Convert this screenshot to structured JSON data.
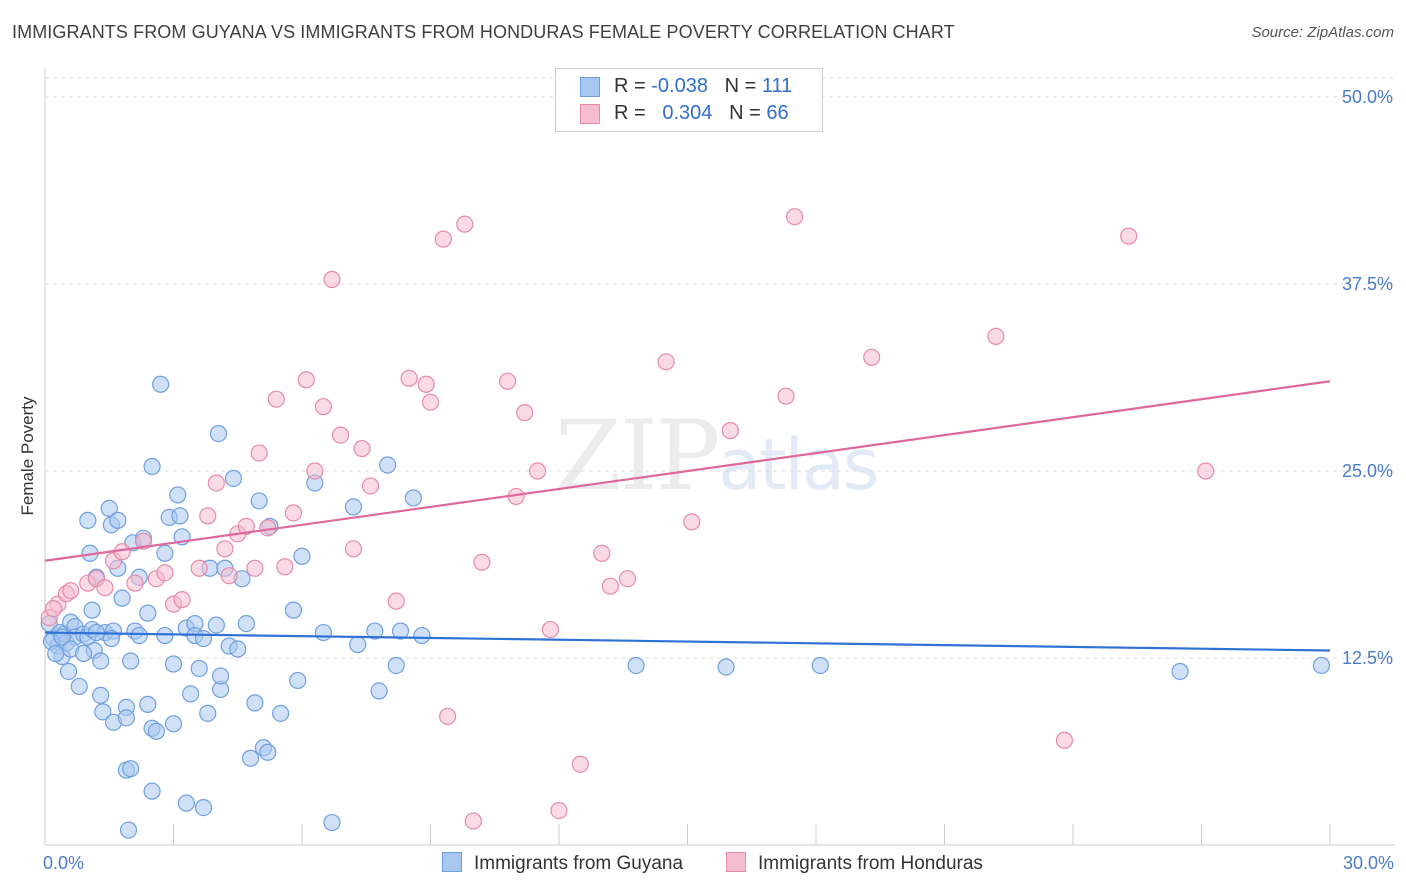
{
  "title": "IMMIGRANTS FROM GUYANA VS IMMIGRANTS FROM HONDURAS FEMALE POVERTY CORRELATION CHART",
  "source": "Source: ZipAtlas.com",
  "watermark": {
    "zip": "ZIP",
    "atlas": "atlas"
  },
  "legend": {
    "rows": [
      {
        "r_label": "R =",
        "r_value": "-0.038",
        "n_label": "N =",
        "n_value": "111",
        "color": "#a9c8f0",
        "border": "#6f9fe0"
      },
      {
        "r_label": "R =",
        "r_value": "0.304",
        "n_label": "N =",
        "n_value": "66",
        "color": "#f6bcd0",
        "border": "#e88aab"
      }
    ]
  },
  "bottom_legend": [
    "Immigrants from Guyana",
    "Immigrants from Honduras"
  ],
  "chart_data": {
    "type": "scatter",
    "title": "IMMIGRANTS FROM GUYANA VS IMMIGRANTS FROM HONDURAS FEMALE POVERTY CORRELATION CHART",
    "xlabel": "",
    "ylabel": "Female Poverty",
    "xlim": [
      0,
      30
    ],
    "ylim": [
      0,
      50
    ],
    "x_tick_labels": [
      "0.0%",
      "30.0%"
    ],
    "y_ticks": [
      12.5,
      25.0,
      37.5,
      50.0
    ],
    "y_tick_labels": [
      "12.5%",
      "25.0%",
      "37.5%",
      "50.0%"
    ],
    "grid": true,
    "series": [
      {
        "name": "Immigrants from Guyana",
        "color": "#6f9fe0",
        "fill": "#a9c8f0",
        "trend": {
          "x": [
            0,
            30
          ],
          "y": [
            14.2,
            13.0
          ]
        },
        "points": [
          [
            0.1,
            14.8
          ],
          [
            0.2,
            13.8
          ],
          [
            0.3,
            13.3
          ],
          [
            0.35,
            14.2
          ],
          [
            0.4,
            12.6
          ],
          [
            0.45,
            14.1
          ],
          [
            0.5,
            13.5
          ],
          [
            0.55,
            11.6
          ],
          [
            0.6,
            14.9
          ],
          [
            0.7,
            14.6
          ],
          [
            0.7,
            13.9
          ],
          [
            0.8,
            10.6
          ],
          [
            0.9,
            14.1
          ],
          [
            1.0,
            13.9
          ],
          [
            1.1,
            14.4
          ],
          [
            1.15,
            13.0
          ],
          [
            1.0,
            21.7
          ],
          [
            1.05,
            19.5
          ],
          [
            1.1,
            15.7
          ],
          [
            1.2,
            17.9
          ],
          [
            1.3,
            10.0
          ],
          [
            1.35,
            8.9
          ],
          [
            1.3,
            12.3
          ],
          [
            1.4,
            14.2
          ],
          [
            1.5,
            22.5
          ],
          [
            1.55,
            21.4
          ],
          [
            1.6,
            14.3
          ],
          [
            1.6,
            8.2
          ],
          [
            1.7,
            21.7
          ],
          [
            1.7,
            18.5
          ],
          [
            1.8,
            16.5
          ],
          [
            1.9,
            9.2
          ],
          [
            1.9,
            8.5
          ],
          [
            1.9,
            5.0
          ],
          [
            1.95,
            1.0
          ],
          [
            2.0,
            5.1
          ],
          [
            2.0,
            12.3
          ],
          [
            2.05,
            20.2
          ],
          [
            2.1,
            14.3
          ],
          [
            2.2,
            14.0
          ],
          [
            2.3,
            20.5
          ],
          [
            2.4,
            15.5
          ],
          [
            2.4,
            9.4
          ],
          [
            2.5,
            25.3
          ],
          [
            2.5,
            7.8
          ],
          [
            2.5,
            3.6
          ],
          [
            2.6,
            7.6
          ],
          [
            2.7,
            30.8
          ],
          [
            2.8,
            14.0
          ],
          [
            2.8,
            19.5
          ],
          [
            2.9,
            21.9
          ],
          [
            3.0,
            8.1
          ],
          [
            3.0,
            12.1
          ],
          [
            3.1,
            23.4
          ],
          [
            3.15,
            22.0
          ],
          [
            3.2,
            20.6
          ],
          [
            3.3,
            14.5
          ],
          [
            3.3,
            2.8
          ],
          [
            3.4,
            10.1
          ],
          [
            3.5,
            14.8
          ],
          [
            3.5,
            14.0
          ],
          [
            3.6,
            11.8
          ],
          [
            3.7,
            13.8
          ],
          [
            3.7,
            2.5
          ],
          [
            3.8,
            8.8
          ],
          [
            3.85,
            18.5
          ],
          [
            4.0,
            14.7
          ],
          [
            4.05,
            27.5
          ],
          [
            4.1,
            10.4
          ],
          [
            4.1,
            11.3
          ],
          [
            4.2,
            18.5
          ],
          [
            4.3,
            13.3
          ],
          [
            4.4,
            24.5
          ],
          [
            4.5,
            13.1
          ],
          [
            4.6,
            17.8
          ],
          [
            4.7,
            14.8
          ],
          [
            4.8,
            5.8
          ],
          [
            4.9,
            9.5
          ],
          [
            5.0,
            23.0
          ],
          [
            5.1,
            6.5
          ],
          [
            5.2,
            6.2
          ],
          [
            5.25,
            21.3
          ],
          [
            5.5,
            8.8
          ],
          [
            5.8,
            15.7
          ],
          [
            5.9,
            11.0
          ],
          [
            6.0,
            19.3
          ],
          [
            6.3,
            24.2
          ],
          [
            6.5,
            14.2
          ],
          [
            6.7,
            1.5
          ],
          [
            7.2,
            22.6
          ],
          [
            7.3,
            13.4
          ],
          [
            7.7,
            14.3
          ],
          [
            7.8,
            10.3
          ],
          [
            8.0,
            25.4
          ],
          [
            8.2,
            12.0
          ],
          [
            8.3,
            14.3
          ],
          [
            8.6,
            23.2
          ],
          [
            8.8,
            14.0
          ],
          [
            13.8,
            12.0
          ],
          [
            15.9,
            11.9
          ],
          [
            18.1,
            12.0
          ],
          [
            26.5,
            11.6
          ],
          [
            29.8,
            12.0
          ],
          [
            0.15,
            13.6
          ],
          [
            0.25,
            12.8
          ],
          [
            0.4,
            13.9
          ],
          [
            0.6,
            13.1
          ],
          [
            0.9,
            12.8
          ],
          [
            1.2,
            14.2
          ],
          [
            1.55,
            13.8
          ],
          [
            2.2,
            17.9
          ]
        ]
      },
      {
        "name": "Immigrants from Honduras",
        "color": "#e88aab",
        "fill": "#f6bcd0",
        "trend": {
          "x": [
            0,
            30
          ],
          "y": [
            19.0,
            31.0
          ]
        },
        "points": [
          [
            0.1,
            15.2
          ],
          [
            0.3,
            16.1
          ],
          [
            0.5,
            16.8
          ],
          [
            0.6,
            17.0
          ],
          [
            1.0,
            17.5
          ],
          [
            1.2,
            17.8
          ],
          [
            1.4,
            17.2
          ],
          [
            1.6,
            19.0
          ],
          [
            1.8,
            19.6
          ],
          [
            2.1,
            17.5
          ],
          [
            2.3,
            20.3
          ],
          [
            2.6,
            17.8
          ],
          [
            2.8,
            18.2
          ],
          [
            3.0,
            16.1
          ],
          [
            3.2,
            16.4
          ],
          [
            3.6,
            18.5
          ],
          [
            3.8,
            22.0
          ],
          [
            4.0,
            24.2
          ],
          [
            4.2,
            19.8
          ],
          [
            4.3,
            18.0
          ],
          [
            4.5,
            20.8
          ],
          [
            4.7,
            21.3
          ],
          [
            4.9,
            18.5
          ],
          [
            5.0,
            26.2
          ],
          [
            5.2,
            21.2
          ],
          [
            5.4,
            29.8
          ],
          [
            5.6,
            18.6
          ],
          [
            5.8,
            22.2
          ],
          [
            6.1,
            31.1
          ],
          [
            6.3,
            25.0
          ],
          [
            6.5,
            29.3
          ],
          [
            6.7,
            37.8
          ],
          [
            6.9,
            27.4
          ],
          [
            7.2,
            19.8
          ],
          [
            7.4,
            26.5
          ],
          [
            7.6,
            24.0
          ],
          [
            8.2,
            16.3
          ],
          [
            8.5,
            31.2
          ],
          [
            8.9,
            30.8
          ],
          [
            9.0,
            29.6
          ],
          [
            9.3,
            40.5
          ],
          [
            9.4,
            8.6
          ],
          [
            9.8,
            41.5
          ],
          [
            10.0,
            1.6
          ],
          [
            10.2,
            18.9
          ],
          [
            10.8,
            31.0
          ],
          [
            11.0,
            23.3
          ],
          [
            11.2,
            28.9
          ],
          [
            11.5,
            25.0
          ],
          [
            11.8,
            14.4
          ],
          [
            12.0,
            2.3
          ],
          [
            12.5,
            5.4
          ],
          [
            13.0,
            19.5
          ],
          [
            13.2,
            17.3
          ],
          [
            13.6,
            17.8
          ],
          [
            14.5,
            32.3
          ],
          [
            15.1,
            21.6
          ],
          [
            16.0,
            27.7
          ],
          [
            17.3,
            30.0
          ],
          [
            17.5,
            42.0
          ],
          [
            19.3,
            32.6
          ],
          [
            22.2,
            34.0
          ],
          [
            23.8,
            7.0
          ],
          [
            25.3,
            40.7
          ],
          [
            27.1,
            25.0
          ],
          [
            0.2,
            15.8
          ]
        ]
      }
    ]
  }
}
